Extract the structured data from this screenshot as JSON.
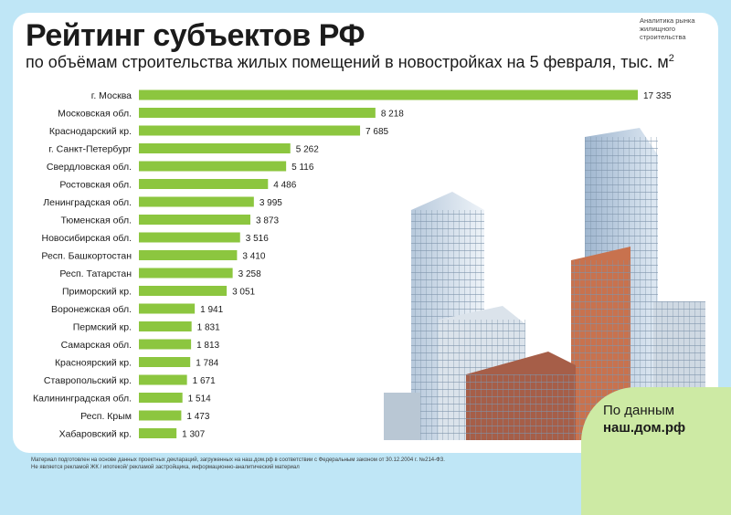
{
  "header": {
    "title": "Рейтинг субъектов РФ",
    "subtitle": "по объёмам строительства жилых помещений в новостройках на 5 февраля, тыс. м",
    "subtitle_sup": "2",
    "brand_line1": "Аналитика рынка",
    "brand_line2": "жилищного",
    "brand_line3": "строительства"
  },
  "cta": {
    "line1": "По данным",
    "line2": "наш.дом.рф"
  },
  "footer": {
    "line1": "Материал подготовлен на основе данных проектных деклараций, загруженных на наш.дом.рф в соответствии с Федеральным законом от 30.12.2004 г. №214-ФЗ.",
    "line2": "Не является рекламой ЖК / ипотекой/ рекламой застройщика, информационно-аналитический материал"
  },
  "colors": {
    "bar": "#8cc63f",
    "background": "#bfe6f6",
    "card": "#ffffff",
    "cta": "#cdeaa4"
  },
  "chart_data": {
    "type": "bar",
    "orientation": "horizontal",
    "categories": [
      "г. Москва",
      "Московская обл.",
      "Краснодарский кр.",
      "г. Санкт-Петербург",
      "Свердловская обл.",
      "Ростовская обл.",
      "Ленинградская обл.",
      "Тюменская обл.",
      "Новосибирская обл.",
      "Респ. Башкортостан",
      "Респ. Татарстан",
      "Приморский кр.",
      "Воронежская обл.",
      "Пермский кр.",
      "Самарская обл.",
      "Красноярский кр.",
      "Ставропольский кр.",
      "Калининградская обл.",
      "Респ. Крым",
      "Хабаровский кр."
    ],
    "values": [
      17335,
      8218,
      7685,
      5262,
      5116,
      4486,
      3995,
      3873,
      3516,
      3410,
      3258,
      3051,
      1941,
      1831,
      1813,
      1784,
      1671,
      1514,
      1473,
      1307
    ],
    "value_labels": [
      "17 335",
      "8 218",
      "7 685",
      "5 262",
      "5 116",
      "4 486",
      "3 995",
      "3 873",
      "3 516",
      "3 410",
      "3 258",
      "3 051",
      "1 941",
      "1 831",
      "1 813",
      "1 784",
      "1 671",
      "1 514",
      "1 473",
      "1 307"
    ],
    "xlim": [
      0,
      17335
    ],
    "grid": false,
    "legend": "none"
  }
}
